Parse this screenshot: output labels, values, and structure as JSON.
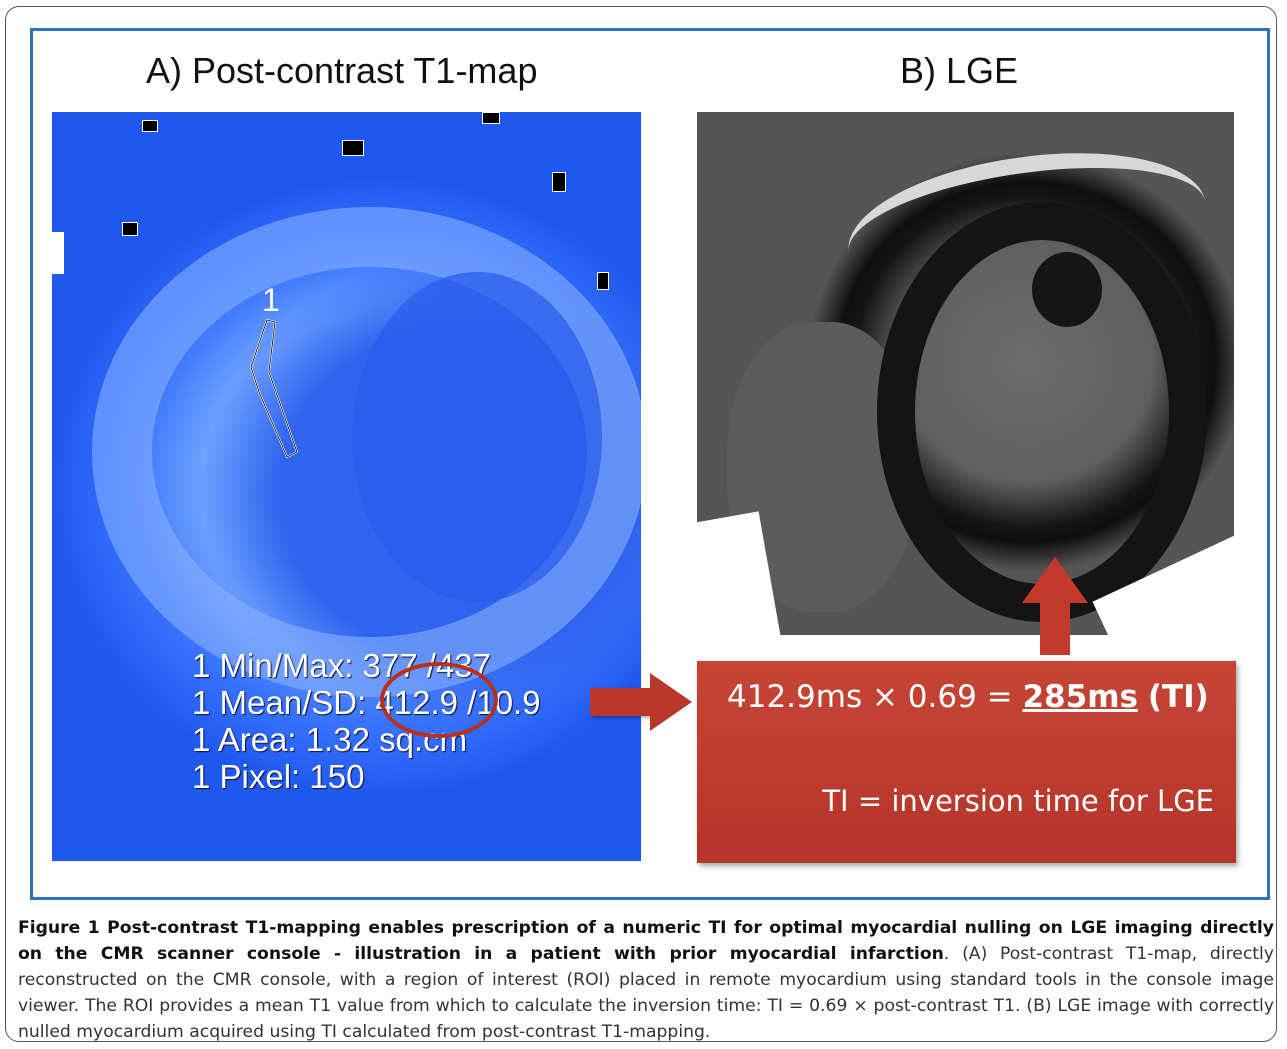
{
  "panel_a": {
    "title": "A) Post-contrast  T1-map",
    "roi_label": "1",
    "stats": {
      "min_max": "1 Min/Max: 377 /437",
      "mean_sd_prefix": "1 Mean/SD: ",
      "mean_value": "412.9",
      "mean_sd_suffix": " /10.9",
      "area": "1 Area: 1.32 sq.cm",
      "pixel": "1 Pixel: 150"
    }
  },
  "panel_b": {
    "title": "B) LGE"
  },
  "formula_box": {
    "formula_prefix": "412.9ms × 0.69 = ",
    "formula_result": "285ms",
    "formula_ti": "(TI)",
    "note": "TI = inversion time for LGE"
  },
  "caption": {
    "bold_text": "Figure 1 Post-contrast T1-mapping enables prescription of a numeric TI for optimal myocardial nulling on LGE imaging directly on the CMR scanner console - illustration in a patient with prior myocardial infarction",
    "body_text": ". (A) Post-contrast T1-map, directly reconstructed on the CMR console, with a region of interest (ROI) placed in remote myocardium using standard tools in the console image viewer. The ROI provides a mean T1 value from which to calculate the inversion time: TI = 0.69 × post-contrast T1. (B) LGE image with correctly nulled myocardium acquired using TI calculated from post-contrast T1-mapping."
  },
  "colors": {
    "frame_border": "#2f72b5",
    "arrow_red": "#c33a2c",
    "box_red": "#b5342a"
  }
}
